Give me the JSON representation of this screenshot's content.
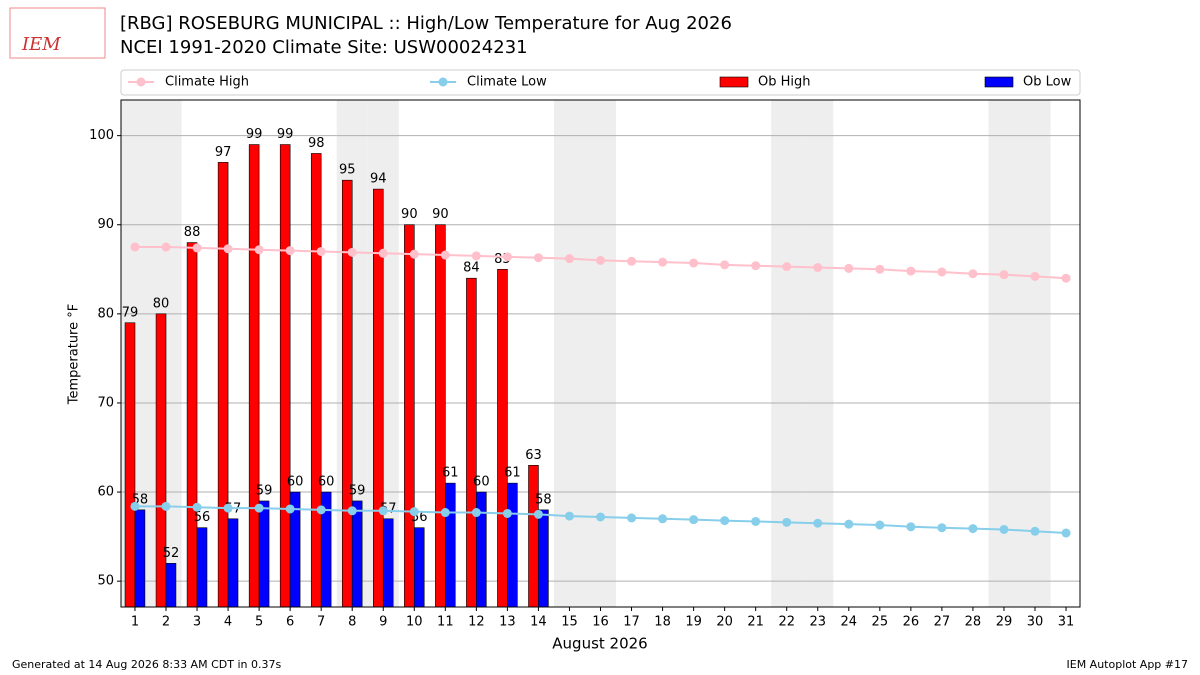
{
  "logo_text": "IEM",
  "footer_left": "Generated at 14 Aug 2026 8:33 AM CDT in 0.37s",
  "footer_right": "IEM Autoplot App #17",
  "chart_data": {
    "type": "bar",
    "title": "[RBG] ROSEBURG MUNICIPAL :: High/Low Temperature for Aug 2026",
    "subtitle": "NCEI 1991-2020 Climate Site: USW00024231",
    "x_label": "August 2026",
    "y_label": "Temperature °F",
    "x": [
      1,
      2,
      3,
      4,
      5,
      6,
      7,
      8,
      9,
      10,
      11,
      12,
      13,
      14,
      15,
      16,
      17,
      18,
      19,
      20,
      21,
      22,
      23,
      24,
      25,
      26,
      27,
      28,
      29,
      30,
      31
    ],
    "xlim": [
      0.55,
      31.45
    ],
    "xticks": [
      1,
      2,
      3,
      4,
      5,
      6,
      7,
      8,
      9,
      10,
      11,
      12,
      13,
      14,
      15,
      16,
      17,
      18,
      19,
      20,
      21,
      22,
      23,
      24,
      25,
      26,
      27,
      28,
      29,
      30,
      31
    ],
    "ylim": [
      47.1,
      104.0
    ],
    "yticks": [
      50,
      60,
      70,
      80,
      90,
      100
    ],
    "grid": true,
    "weekend_shading": [
      1,
      2,
      8,
      9,
      15,
      16,
      22,
      23,
      29,
      30
    ],
    "series": [
      {
        "name": "Climate High",
        "color": "#ffc0cb",
        "kind": "line",
        "values": [
          87.5,
          87.5,
          87.4,
          87.3,
          87.2,
          87.1,
          87.0,
          86.9,
          86.8,
          86.7,
          86.6,
          86.5,
          86.4,
          86.3,
          86.2,
          86.0,
          85.9,
          85.8,
          85.7,
          85.5,
          85.4,
          85.3,
          85.2,
          85.1,
          85.0,
          84.8,
          84.7,
          84.5,
          84.4,
          84.2,
          84.0
        ]
      },
      {
        "name": "Climate Low",
        "color": "#87ceeb",
        "kind": "line",
        "values": [
          58.4,
          58.4,
          58.3,
          58.2,
          58.2,
          58.1,
          58.0,
          57.9,
          57.9,
          57.8,
          57.7,
          57.7,
          57.6,
          57.5,
          57.3,
          57.2,
          57.1,
          57.0,
          56.9,
          56.8,
          56.7,
          56.6,
          56.5,
          56.4,
          56.3,
          56.1,
          56.0,
          55.9,
          55.8,
          55.6,
          55.4
        ]
      },
      {
        "name": "Ob High",
        "color": "#ff0000",
        "kind": "bar",
        "values": [
          79,
          80,
          88,
          97,
          99,
          99,
          98,
          95,
          94,
          90,
          90,
          84,
          85,
          63,
          null,
          null,
          null,
          null,
          null,
          null,
          null,
          null,
          null,
          null,
          null,
          null,
          null,
          null,
          null,
          null,
          null
        ]
      },
      {
        "name": "Ob Low",
        "color": "#0000ff",
        "kind": "bar",
        "values": [
          58,
          52,
          56,
          57,
          59,
          60,
          60,
          59,
          57,
          56,
          61,
          60,
          61,
          58,
          null,
          null,
          null,
          null,
          null,
          null,
          null,
          null,
          null,
          null,
          null,
          null,
          null,
          null,
          null,
          null,
          null
        ]
      }
    ]
  }
}
